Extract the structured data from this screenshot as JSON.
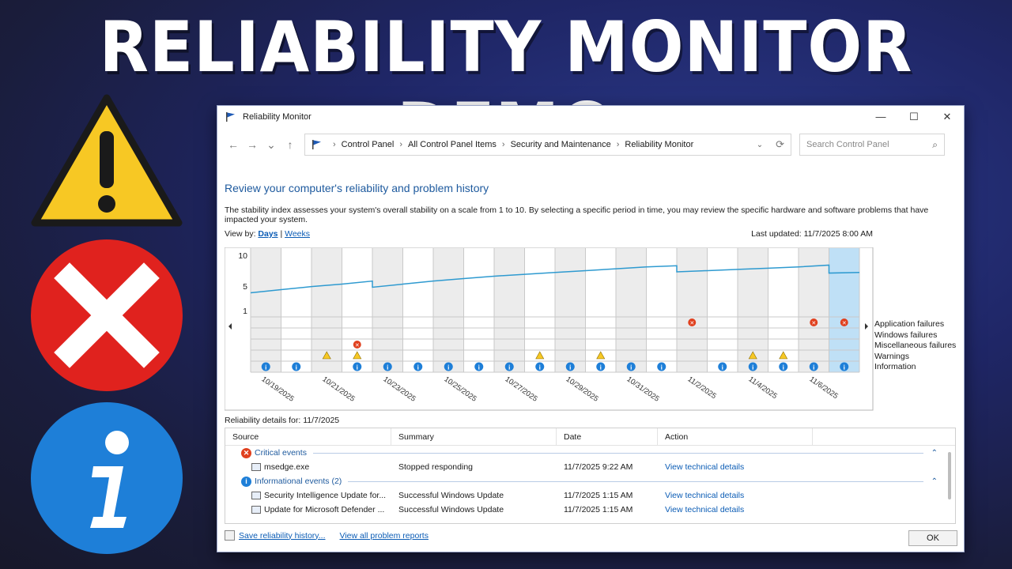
{
  "headline": "RELIABILITY MONITOR DEMO",
  "colors": {
    "warning": "#f7c824",
    "error": "#e0221e",
    "info": "#1e7fd8",
    "accent": "#1e5a9e",
    "link": "#0b5cb5"
  },
  "window": {
    "title": "Reliability Monitor",
    "controls": {
      "minimize": "—",
      "maximize": "☐",
      "close": "✕"
    }
  },
  "nav": {
    "back": "←",
    "forward": "→",
    "recent": "⌄",
    "up": "↑",
    "breadcrumb": [
      "Control Panel",
      "All Control Panel Items",
      "Security and Maintenance",
      "Reliability Monitor"
    ],
    "search_placeholder": "Search Control Panel"
  },
  "main": {
    "heading": "Review your computer's reliability and problem history",
    "description": "The stability index assesses your system's overall stability on a scale from 1 to 10. By selecting a specific period in time, you may review the specific hardware and software problems that have impacted your system.",
    "view_by_label": "View by:",
    "view_days": "Days",
    "view_sep": "|",
    "view_weeks": "Weeks",
    "last_updated": "Last updated: 11/7/2025 8:00 AM"
  },
  "chart_data": {
    "type": "line",
    "y_ticks": [
      "10",
      "5",
      "1"
    ],
    "ylim": [
      1,
      10
    ],
    "columns": 20,
    "selected_column": 19,
    "date_labels": [
      "10/19/2025",
      "10/21/2025",
      "10/23/2025",
      "10/25/2025",
      "10/27/2025",
      "10/29/2025",
      "10/31/2025",
      "11/2/2025",
      "11/4/2025",
      "11/6/2025"
    ],
    "series": [
      {
        "values": [
          [
            3.9,
            4.4
          ],
          [
            4.4,
            4.9
          ],
          [
            4.9,
            5.3
          ],
          [
            5.3,
            5.8
          ],
          [
            4.8,
            5.3
          ],
          [
            5.3,
            5.8
          ],
          [
            5.8,
            6.2
          ],
          [
            6.2,
            6.6
          ],
          [
            6.6,
            6.9
          ],
          [
            6.9,
            7.2
          ],
          [
            7.2,
            7.5
          ],
          [
            7.5,
            7.8
          ],
          [
            7.8,
            8.1
          ],
          [
            8.1,
            8.3
          ],
          [
            7.3,
            7.5
          ],
          [
            7.5,
            7.7
          ],
          [
            7.7,
            7.9
          ],
          [
            7.9,
            8.1
          ],
          [
            8.1,
            8.4
          ],
          [
            7.1,
            7.2
          ]
        ]
      }
    ],
    "row_labels": [
      "Application failures",
      "Windows failures",
      "Miscellaneous failures",
      "Warnings",
      "Information"
    ],
    "events": {
      "application_failures": [
        14,
        18,
        19
      ],
      "misc_failures": [
        3
      ],
      "warnings": [
        2,
        3,
        9,
        11,
        16,
        17
      ],
      "information": [
        0,
        1,
        3,
        4,
        5,
        6,
        7,
        8,
        9,
        10,
        11,
        12,
        13,
        15,
        16,
        17,
        18,
        19
      ]
    }
  },
  "details": {
    "label": "Reliability details for: 11/7/2025",
    "columns": [
      "Source",
      "Summary",
      "Date",
      "Action"
    ],
    "groups": [
      {
        "title": "Critical events",
        "icon": "critical-icon",
        "rows": [
          {
            "source": "msedge.exe",
            "summary": "Stopped responding",
            "date": "11/7/2025 9:22 AM",
            "action": "View technical details"
          }
        ]
      },
      {
        "title": "Informational events (2)",
        "icon": "info-icon",
        "rows": [
          {
            "source": "Security Intelligence Update for...",
            "summary": "Successful Windows Update",
            "date": "11/7/2025 1:15 AM",
            "action": "View technical details"
          },
          {
            "source": "Update for Microsoft Defender ...",
            "summary": "Successful Windows Update",
            "date": "11/7/2025 1:15 AM",
            "action": "View technical details"
          }
        ]
      }
    ]
  },
  "footer": {
    "save_link": "Save reliability history...",
    "view_all_link": "View all problem reports",
    "ok": "OK"
  }
}
